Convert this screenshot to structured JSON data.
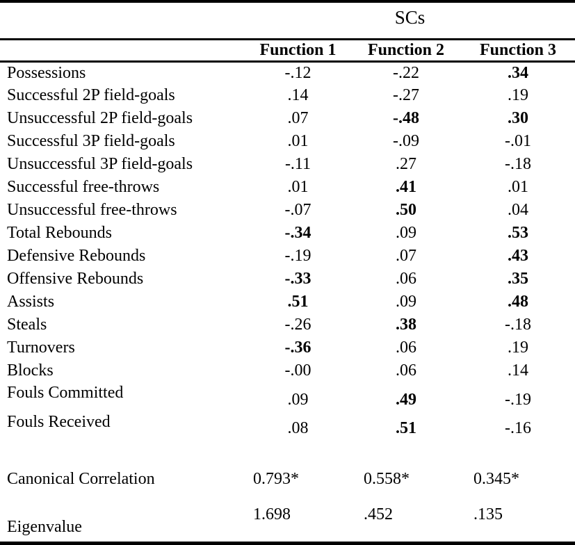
{
  "table": {
    "title": "SCs",
    "columns": [
      "Function 1",
      "Function 2",
      "Function 3"
    ],
    "rows": [
      {
        "label": "Possessions",
        "values": [
          "-.12",
          "-.22",
          ".34"
        ],
        "bold": [
          false,
          false,
          true
        ]
      },
      {
        "label": "Successful 2P field-goals",
        "values": [
          ".14",
          "-.27",
          ".19"
        ],
        "bold": [
          false,
          false,
          false
        ]
      },
      {
        "label": "Unsuccessful 2P field-goals",
        "values": [
          ".07",
          "-.48",
          ".30"
        ],
        "bold": [
          false,
          true,
          true
        ]
      },
      {
        "label": "Successful 3P field-goals",
        "values": [
          ".01",
          "-.09",
          "-.01"
        ],
        "bold": [
          false,
          false,
          false
        ]
      },
      {
        "label": "Unsuccessful 3P field-goals",
        "values": [
          "-.11",
          ".27",
          "-.18"
        ],
        "bold": [
          false,
          false,
          false
        ]
      },
      {
        "label": "Successful free-throws",
        "values": [
          ".01",
          ".41",
          ".01"
        ],
        "bold": [
          false,
          true,
          false
        ]
      },
      {
        "label": "Unsuccessful free-throws",
        "values": [
          "-.07",
          ".50",
          ".04"
        ],
        "bold": [
          false,
          true,
          false
        ]
      },
      {
        "label": "Total Rebounds",
        "values": [
          "-.34",
          ".09",
          ".53"
        ],
        "bold": [
          true,
          false,
          true
        ]
      },
      {
        "label": "Defensive Rebounds",
        "values": [
          "-.19",
          ".07",
          ".43"
        ],
        "bold": [
          false,
          false,
          true
        ]
      },
      {
        "label": "Offensive Rebounds",
        "values": [
          "-.33",
          ".06",
          ".35"
        ],
        "bold": [
          true,
          false,
          true
        ]
      },
      {
        "label": "Assists",
        "values": [
          ".51",
          ".09",
          ".48"
        ],
        "bold": [
          true,
          false,
          true
        ]
      },
      {
        "label": "Steals",
        "values": [
          "-.26",
          ".38",
          "-.18"
        ],
        "bold": [
          false,
          true,
          false
        ]
      },
      {
        "label": "Turnovers",
        "values": [
          "-.36",
          ".06",
          ".19"
        ],
        "bold": [
          true,
          false,
          false
        ]
      },
      {
        "label": "Blocks",
        "values": [
          "-.00",
          ".06",
          ".14"
        ],
        "bold": [
          false,
          false,
          false
        ]
      },
      {
        "label": "Fouls Committed",
        "values": [
          ".09",
          ".49",
          "-.19"
        ],
        "bold": [
          false,
          true,
          false
        ]
      },
      {
        "label": "Fouls Received",
        "values": [
          ".08",
          ".51",
          "-.16"
        ],
        "bold": [
          false,
          true,
          false
        ]
      }
    ],
    "stats": [
      {
        "label": "Canonical Correlation",
        "values": [
          "0.793*",
          "0.558*",
          "0.345*"
        ]
      },
      {
        "label": "Eigenvalue",
        "values": [
          "1.698",
          ".452",
          ".135"
        ]
      }
    ]
  }
}
